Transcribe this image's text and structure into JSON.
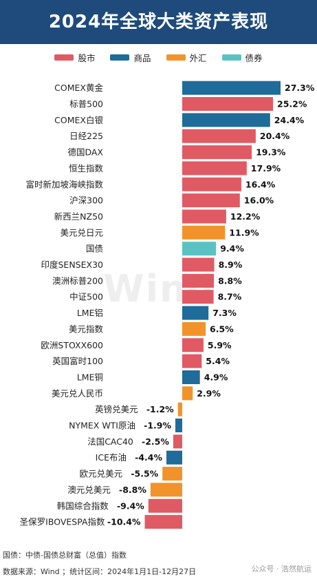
{
  "header": {
    "title": "2024年全球大类资产表现"
  },
  "legend": [
    {
      "label": "股市",
      "color": "#e05a64"
    },
    {
      "label": "商品",
      "color": "#1f6b99"
    },
    {
      "label": "外汇",
      "color": "#f1932a"
    },
    {
      "label": "债券",
      "color": "#5bc2c3"
    }
  ],
  "chart_data": {
    "type": "bar",
    "orientation": "horizontal",
    "categories": [
      "COMEX黄金",
      "标普500",
      "COMEX白银",
      "日经225",
      "德国DAX",
      "恒生指数",
      "富时新加坡海峡指数",
      "沪深300",
      "新西兰NZ50",
      "美元兑日元",
      "国债",
      "印度SENSEX30",
      "澳洲标普200",
      "中证500",
      "LME铝",
      "美元指数",
      "欧洲STOXX600",
      "英国富时100",
      "LME铜",
      "美元兑人民币",
      "英镑兑美元",
      "NYMEX WTI原油",
      "法国CAC40",
      "ICE布油",
      "欧元兑美元",
      "澳元兑美元",
      "韩国综合指数",
      "圣保罗IBOVESPA指数"
    ],
    "values": [
      27.3,
      25.2,
      24.4,
      20.4,
      19.3,
      17.9,
      16.4,
      16.0,
      12.2,
      11.9,
      9.4,
      8.9,
      8.8,
      8.7,
      7.3,
      6.5,
      5.9,
      5.4,
      4.9,
      2.9,
      -1.2,
      -1.9,
      -2.5,
      -4.4,
      -5.5,
      -8.8,
      -9.4,
      -10.4
    ],
    "value_labels": [
      "27.3%",
      "25.2%",
      "24.4%",
      "20.4%",
      "19.3%",
      "17.9%",
      "16.4%",
      "16.0%",
      "12.2%",
      "11.9%",
      "9.4%",
      "8.9%",
      "8.8%",
      "8.7%",
      "7.3%",
      "6.5%",
      "5.9%",
      "5.4%",
      "4.9%",
      "2.9%",
      "-1.2%",
      "-1.9%",
      "-2.5%",
      "-4.4%",
      "-5.5%",
      "-8.8%",
      "-9.4%",
      "-10.4%"
    ],
    "classes": [
      "商品",
      "股市",
      "商品",
      "股市",
      "股市",
      "股市",
      "股市",
      "股市",
      "股市",
      "外汇",
      "债券",
      "股市",
      "股市",
      "股市",
      "商品",
      "外汇",
      "股市",
      "股市",
      "商品",
      "外汇",
      "外汇",
      "商品",
      "股市",
      "商品",
      "外汇",
      "外汇",
      "股市",
      "股市"
    ],
    "unit": "%",
    "xlim": [
      -10.4,
      27.3
    ],
    "grid": false,
    "legend_position": "top-center"
  },
  "watermark": "Wind",
  "footer": {
    "note": "国债：中债-国债总财富（总值）指数",
    "source": "数据来源：Wind ；统计区间：2024年1月1日-12月27日"
  },
  "corner_watermark": "公众号 · 浩然航运"
}
